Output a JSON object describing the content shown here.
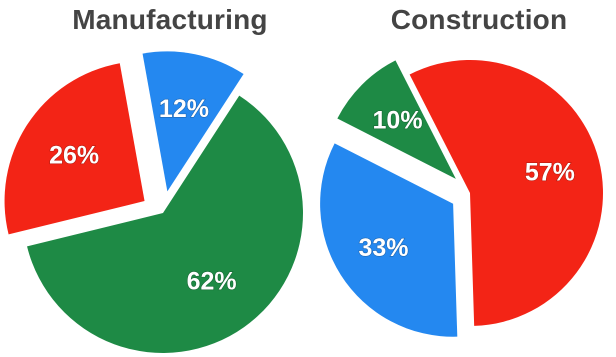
{
  "colors": {
    "green": "#1e8a45",
    "red": "#f32416",
    "blue": "#2488f0"
  },
  "chart_data": [
    {
      "type": "pie",
      "title": "Manufacturing",
      "slices": [
        {
          "label": "62%",
          "value": 62,
          "color": "#1e8a45",
          "exploded": false
        },
        {
          "label": "26%",
          "value": 26,
          "color": "#f32416",
          "exploded": true
        },
        {
          "label": "12%",
          "value": 12,
          "color": "#2488f0",
          "exploded": true
        }
      ]
    },
    {
      "type": "pie",
      "title": "Construction",
      "slices": [
        {
          "label": "57%",
          "value": 57,
          "color": "#f32416",
          "exploded": false
        },
        {
          "label": "33%",
          "value": 33,
          "color": "#2488f0",
          "exploded": true
        },
        {
          "label": "10%",
          "value": 10,
          "color": "#1e8a45",
          "exploded": true
        }
      ]
    }
  ]
}
